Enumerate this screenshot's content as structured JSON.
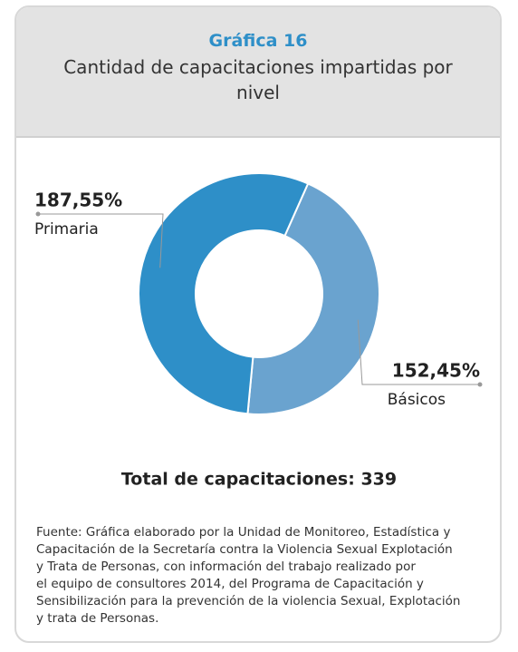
{
  "chart_data": {
    "type": "donut",
    "chart_number": "Gráfica 16",
    "title": "Cantidad de capacitaciones impartidas por nivel",
    "categories": [
      "Básicos",
      "Primaria"
    ],
    "values": [
      152,
      187
    ],
    "value_labels": [
      "152,45%",
      "187,55%"
    ],
    "colors": [
      "#6aa3cf",
      "#2e8fc8"
    ],
    "total_label": "Total de capacitaciones: 339",
    "source": [
      "Fuente: Gráfica elaborado por la Unidad de Monitoreo, Estadística y",
      "Capacitación de la Secretaría contra la Violencia Sexual Explotación",
      "y Trata de Personas, con información del trabajo realizado por",
      "el equipo de consultores 2014, del Programa de Capacitación y",
      "Sensibilización para la prevención de la violencia Sexual, Explotación",
      "y trata de Personas."
    ]
  }
}
